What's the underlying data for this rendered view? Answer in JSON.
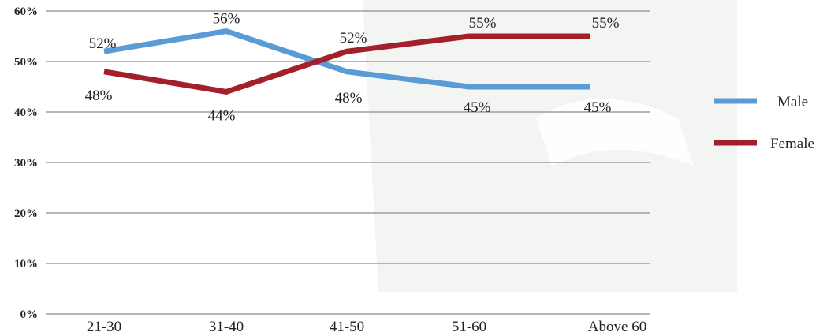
{
  "chart_data": {
    "type": "line",
    "categories": [
      "21-30",
      "31-40",
      "41-50",
      "51-60",
      "Above 60"
    ],
    "series": [
      {
        "name": "Male",
        "values": [
          52,
          56,
          48,
          45,
          45
        ],
        "labels": [
          "52%",
          "56%",
          "48%",
          "45%",
          "45%"
        ],
        "color": "#5b9bd5"
      },
      {
        "name": "Female",
        "values": [
          48,
          44,
          52,
          55,
          55
        ],
        "labels": [
          "48%",
          "44%",
          "52%",
          "55%",
          "55%"
        ],
        "color": "#a31f2b"
      }
    ],
    "yticks": [
      0,
      10,
      20,
      30,
      40,
      50,
      60
    ],
    "ytick_labels": [
      "0%",
      "10%",
      "20%",
      "30%",
      "40%",
      "50%",
      "60%"
    ],
    "ylim": [
      0,
      60
    ],
    "grid": true,
    "legend": "right",
    "title": "",
    "xlabel": "",
    "ylabel": ""
  }
}
